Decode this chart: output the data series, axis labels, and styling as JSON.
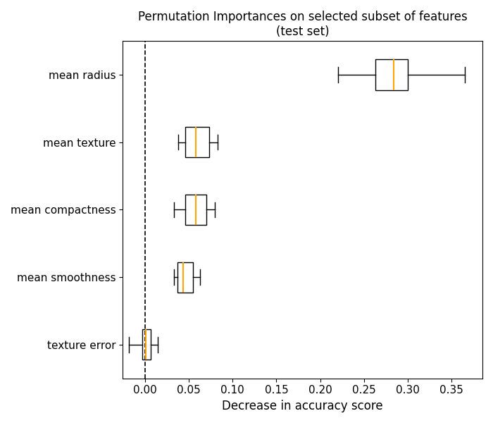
{
  "title": "Permutation Importances on selected subset of features\n(test set)",
  "xlabel": "Decrease in accuracy score",
  "features": [
    "mean radius",
    "mean texture",
    "mean compactness",
    "mean smoothness",
    "texture error"
  ],
  "box_stats": [
    {
      "whislo": 0.22,
      "q1": 0.263,
      "med": 0.284,
      "q3": 0.3,
      "whishi": 0.365
    },
    {
      "whislo": 0.038,
      "q1": 0.046,
      "med": 0.058,
      "q3": 0.073,
      "whishi": 0.083
    },
    {
      "whislo": 0.033,
      "q1": 0.046,
      "med": 0.058,
      "q3": 0.07,
      "whishi": 0.08
    },
    {
      "whislo": 0.033,
      "q1": 0.037,
      "med": 0.044,
      "q3": 0.055,
      "whishi": 0.063
    },
    {
      "whislo": -0.018,
      "q1": -0.003,
      "med": 0.001,
      "q3": 0.007,
      "whishi": 0.015
    }
  ],
  "median_color": "orange",
  "box_facecolor": "white",
  "box_edgecolor": "black",
  "whisker_color": "black",
  "cap_color": "black",
  "vline_x": 0.0,
  "vline_color": "black",
  "vline_style": "--",
  "xlim_left": -0.025,
  "xlim_right": 0.385,
  "title_fontsize": 12,
  "label_fontsize": 12,
  "tick_fontsize": 11,
  "figsize": [
    7.0,
    6.0
  ],
  "dpi": 100
}
